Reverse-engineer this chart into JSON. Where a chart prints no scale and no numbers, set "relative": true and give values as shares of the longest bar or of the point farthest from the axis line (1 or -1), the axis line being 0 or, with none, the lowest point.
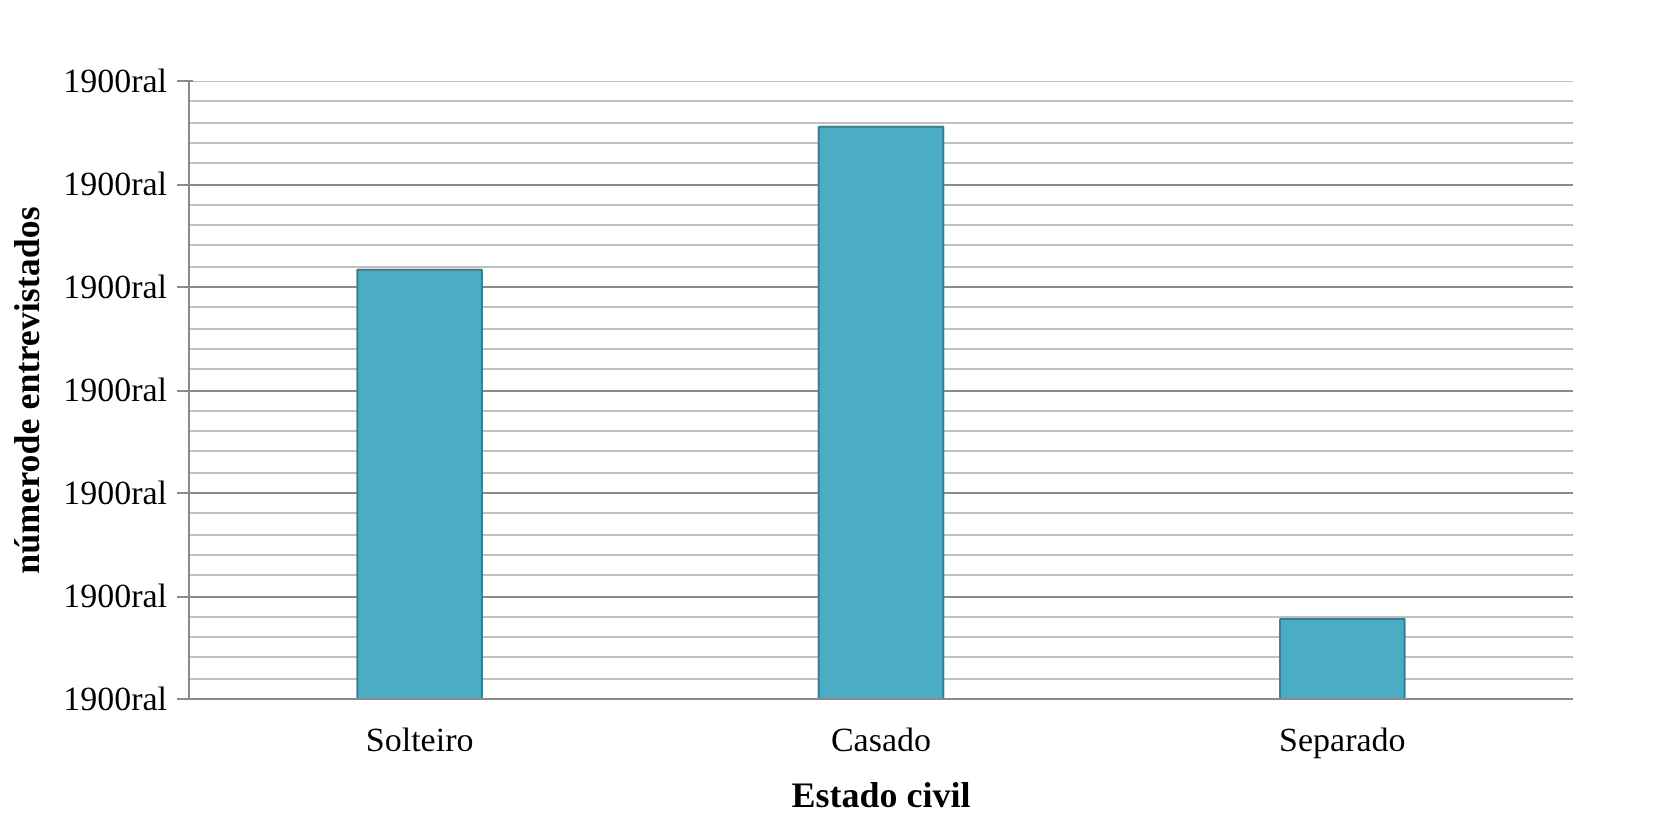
{
  "chart_data": {
    "type": "bar",
    "xlabel": "Estado civil",
    "ylabel": "númerode entrevistados",
    "categories": [
      "Solteiro",
      "Casado",
      "Separado"
    ],
    "values": [
      0.75,
      1,
      0.14
    ],
    "color": "#4bacc6",
    "relative": true,
    "annotations": [
      "1900ral",
      "1900ral",
      "1900ral",
      "1900ral",
      "1900ral",
      "1900ral",
      "1900ral"
    ],
    "grid": "y"
  }
}
